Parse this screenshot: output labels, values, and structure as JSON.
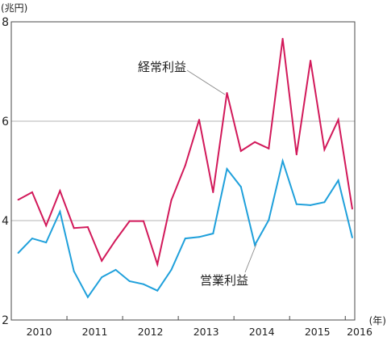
{
  "chart_data": {
    "type": "line",
    "y_unit": "(兆円)",
    "x_unit": "(年)",
    "ylim": [
      2,
      8
    ],
    "xlim": [
      2010,
      2016.17
    ],
    "y_ticks": [
      2,
      4,
      6,
      8
    ],
    "grid": true,
    "x_ticks": [
      2011,
      2012,
      2013,
      2014,
      2015,
      2016
    ],
    "x_tick_labels": [
      "2010",
      "2011",
      "2012",
      "2013",
      "2014",
      "2015",
      "2016"
    ],
    "x": [
      2010.125,
      2010.375,
      2010.625,
      2010.875,
      2011.125,
      2011.375,
      2011.625,
      2011.875,
      2012.125,
      2012.375,
      2012.625,
      2012.875,
      2013.125,
      2013.375,
      2013.625,
      2013.875,
      2014.125,
      2014.375,
      2014.625,
      2014.875,
      2015.125,
      2015.375,
      2015.625,
      2015.875,
      2016.125
    ],
    "series": [
      {
        "name": "経常利益",
        "color": "#d2195a",
        "values": [
          4.42,
          4.57,
          3.9,
          4.6,
          3.85,
          3.87,
          3.19,
          3.61,
          3.99,
          3.99,
          3.12,
          4.41,
          5.11,
          6.03,
          4.57,
          6.57,
          5.4,
          5.58,
          5.45,
          7.66,
          5.33,
          7.22,
          5.43,
          6.03,
          4.24
        ]
      },
      {
        "name": "営業利益",
        "color": "#1fa0db",
        "values": [
          3.35,
          3.64,
          3.56,
          4.18,
          2.98,
          2.46,
          2.86,
          3.01,
          2.78,
          2.72,
          2.59,
          3.01,
          3.64,
          3.67,
          3.74,
          5.04,
          4.68,
          3.51,
          4.01,
          5.2,
          4.33,
          4.31,
          4.37,
          4.81,
          3.66
        ]
      }
    ]
  }
}
